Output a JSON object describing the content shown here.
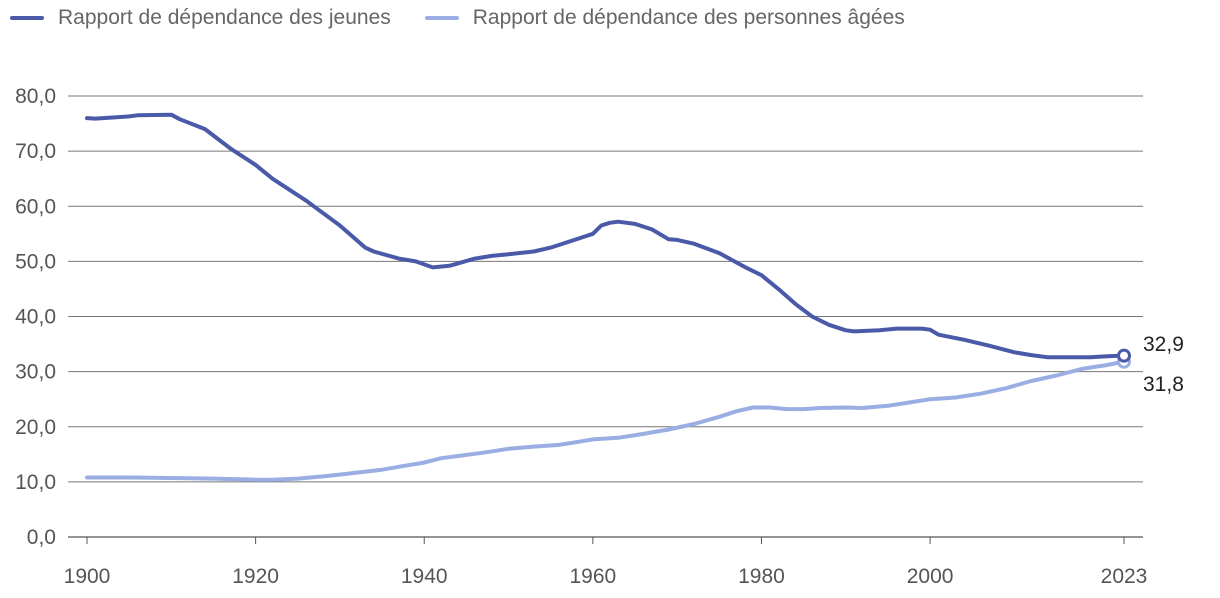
{
  "chart_data": {
    "type": "line",
    "xlim": [
      1900,
      2023
    ],
    "ylim": [
      0,
      80
    ],
    "x_ticks": [
      "1900",
      "1920",
      "1940",
      "1960",
      "1980",
      "2000",
      "2023"
    ],
    "x_tick_values": [
      1900,
      1920,
      1940,
      1960,
      1980,
      2000,
      2023
    ],
    "y_ticks": [
      "0,0",
      "10,0",
      "20,0",
      "30,0",
      "40,0",
      "50,0",
      "60,0",
      "70,0",
      "80,0"
    ],
    "y_tick_values": [
      0,
      10,
      20,
      30,
      40,
      50,
      60,
      70,
      80
    ],
    "grid": "horizontal",
    "legend_position": "top-left",
    "series": [
      {
        "name": "Rapport de dépendance des jeunes",
        "color": "#4a5aa8",
        "end_label": "32,9",
        "points": [
          [
            1900,
            76.0
          ],
          [
            1901,
            75.9
          ],
          [
            1905,
            76.3
          ],
          [
            1906,
            76.5
          ],
          [
            1910,
            76.6
          ],
          [
            1911,
            75.8
          ],
          [
            1914,
            74.0
          ],
          [
            1917,
            70.5
          ],
          [
            1919,
            68.5
          ],
          [
            1920,
            67.5
          ],
          [
            1922,
            65.0
          ],
          [
            1926,
            61.0
          ],
          [
            1930,
            56.5
          ],
          [
            1933,
            52.5
          ],
          [
            1934,
            51.8
          ],
          [
            1937,
            50.5
          ],
          [
            1939,
            50.0
          ],
          [
            1941,
            48.9
          ],
          [
            1943,
            49.2
          ],
          [
            1946,
            50.5
          ],
          [
            1948,
            51.0
          ],
          [
            1950,
            51.3
          ],
          [
            1953,
            51.8
          ],
          [
            1955,
            52.5
          ],
          [
            1957,
            53.5
          ],
          [
            1959,
            54.5
          ],
          [
            1960,
            55.0
          ],
          [
            1961,
            56.5
          ],
          [
            1962,
            57.0
          ],
          [
            1963,
            57.2
          ],
          [
            1965,
            56.8
          ],
          [
            1967,
            55.8
          ],
          [
            1969,
            54.0
          ],
          [
            1970,
            53.9
          ],
          [
            1972,
            53.2
          ],
          [
            1975,
            51.5
          ],
          [
            1978,
            49.0
          ],
          [
            1980,
            47.5
          ],
          [
            1982,
            45.0
          ],
          [
            1984,
            42.3
          ],
          [
            1986,
            40.0
          ],
          [
            1988,
            38.5
          ],
          [
            1990,
            37.5
          ],
          [
            1991,
            37.3
          ],
          [
            1994,
            37.5
          ],
          [
            1996,
            37.8
          ],
          [
            1999,
            37.8
          ],
          [
            2000,
            37.6
          ],
          [
            2001,
            36.7
          ],
          [
            2004,
            35.8
          ],
          [
            2007,
            34.7
          ],
          [
            2010,
            33.5
          ],
          [
            2012,
            33.0
          ],
          [
            2014,
            32.6
          ],
          [
            2016,
            32.6
          ],
          [
            2019,
            32.6
          ],
          [
            2021,
            32.8
          ],
          [
            2023,
            32.9
          ]
        ]
      },
      {
        "name": "Rapport de dépendance des personnes âgées",
        "color": "#9aaee4",
        "end_label": "31,8",
        "points": [
          [
            1900,
            10.8
          ],
          [
            1905,
            10.8
          ],
          [
            1910,
            10.7
          ],
          [
            1915,
            10.6
          ],
          [
            1920,
            10.4
          ],
          [
            1922,
            10.4
          ],
          [
            1925,
            10.6
          ],
          [
            1928,
            11.0
          ],
          [
            1931,
            11.5
          ],
          [
            1935,
            12.2
          ],
          [
            1938,
            13.0
          ],
          [
            1940,
            13.5
          ],
          [
            1942,
            14.3
          ],
          [
            1944,
            14.7
          ],
          [
            1947,
            15.3
          ],
          [
            1950,
            16.0
          ],
          [
            1953,
            16.4
          ],
          [
            1956,
            16.7
          ],
          [
            1958,
            17.2
          ],
          [
            1960,
            17.7
          ],
          [
            1963,
            18.0
          ],
          [
            1966,
            18.7
          ],
          [
            1969,
            19.5
          ],
          [
            1972,
            20.5
          ],
          [
            1975,
            21.8
          ],
          [
            1977,
            22.8
          ],
          [
            1979,
            23.5
          ],
          [
            1981,
            23.5
          ],
          [
            1983,
            23.2
          ],
          [
            1985,
            23.2
          ],
          [
            1987,
            23.4
          ],
          [
            1990,
            23.5
          ],
          [
            1992,
            23.4
          ],
          [
            1995,
            23.8
          ],
          [
            1998,
            24.5
          ],
          [
            2000,
            25.0
          ],
          [
            2003,
            25.3
          ],
          [
            2006,
            26.0
          ],
          [
            2009,
            27.0
          ],
          [
            2012,
            28.3
          ],
          [
            2015,
            29.3
          ],
          [
            2018,
            30.5
          ],
          [
            2021,
            31.2
          ],
          [
            2023,
            31.8
          ]
        ]
      }
    ]
  }
}
